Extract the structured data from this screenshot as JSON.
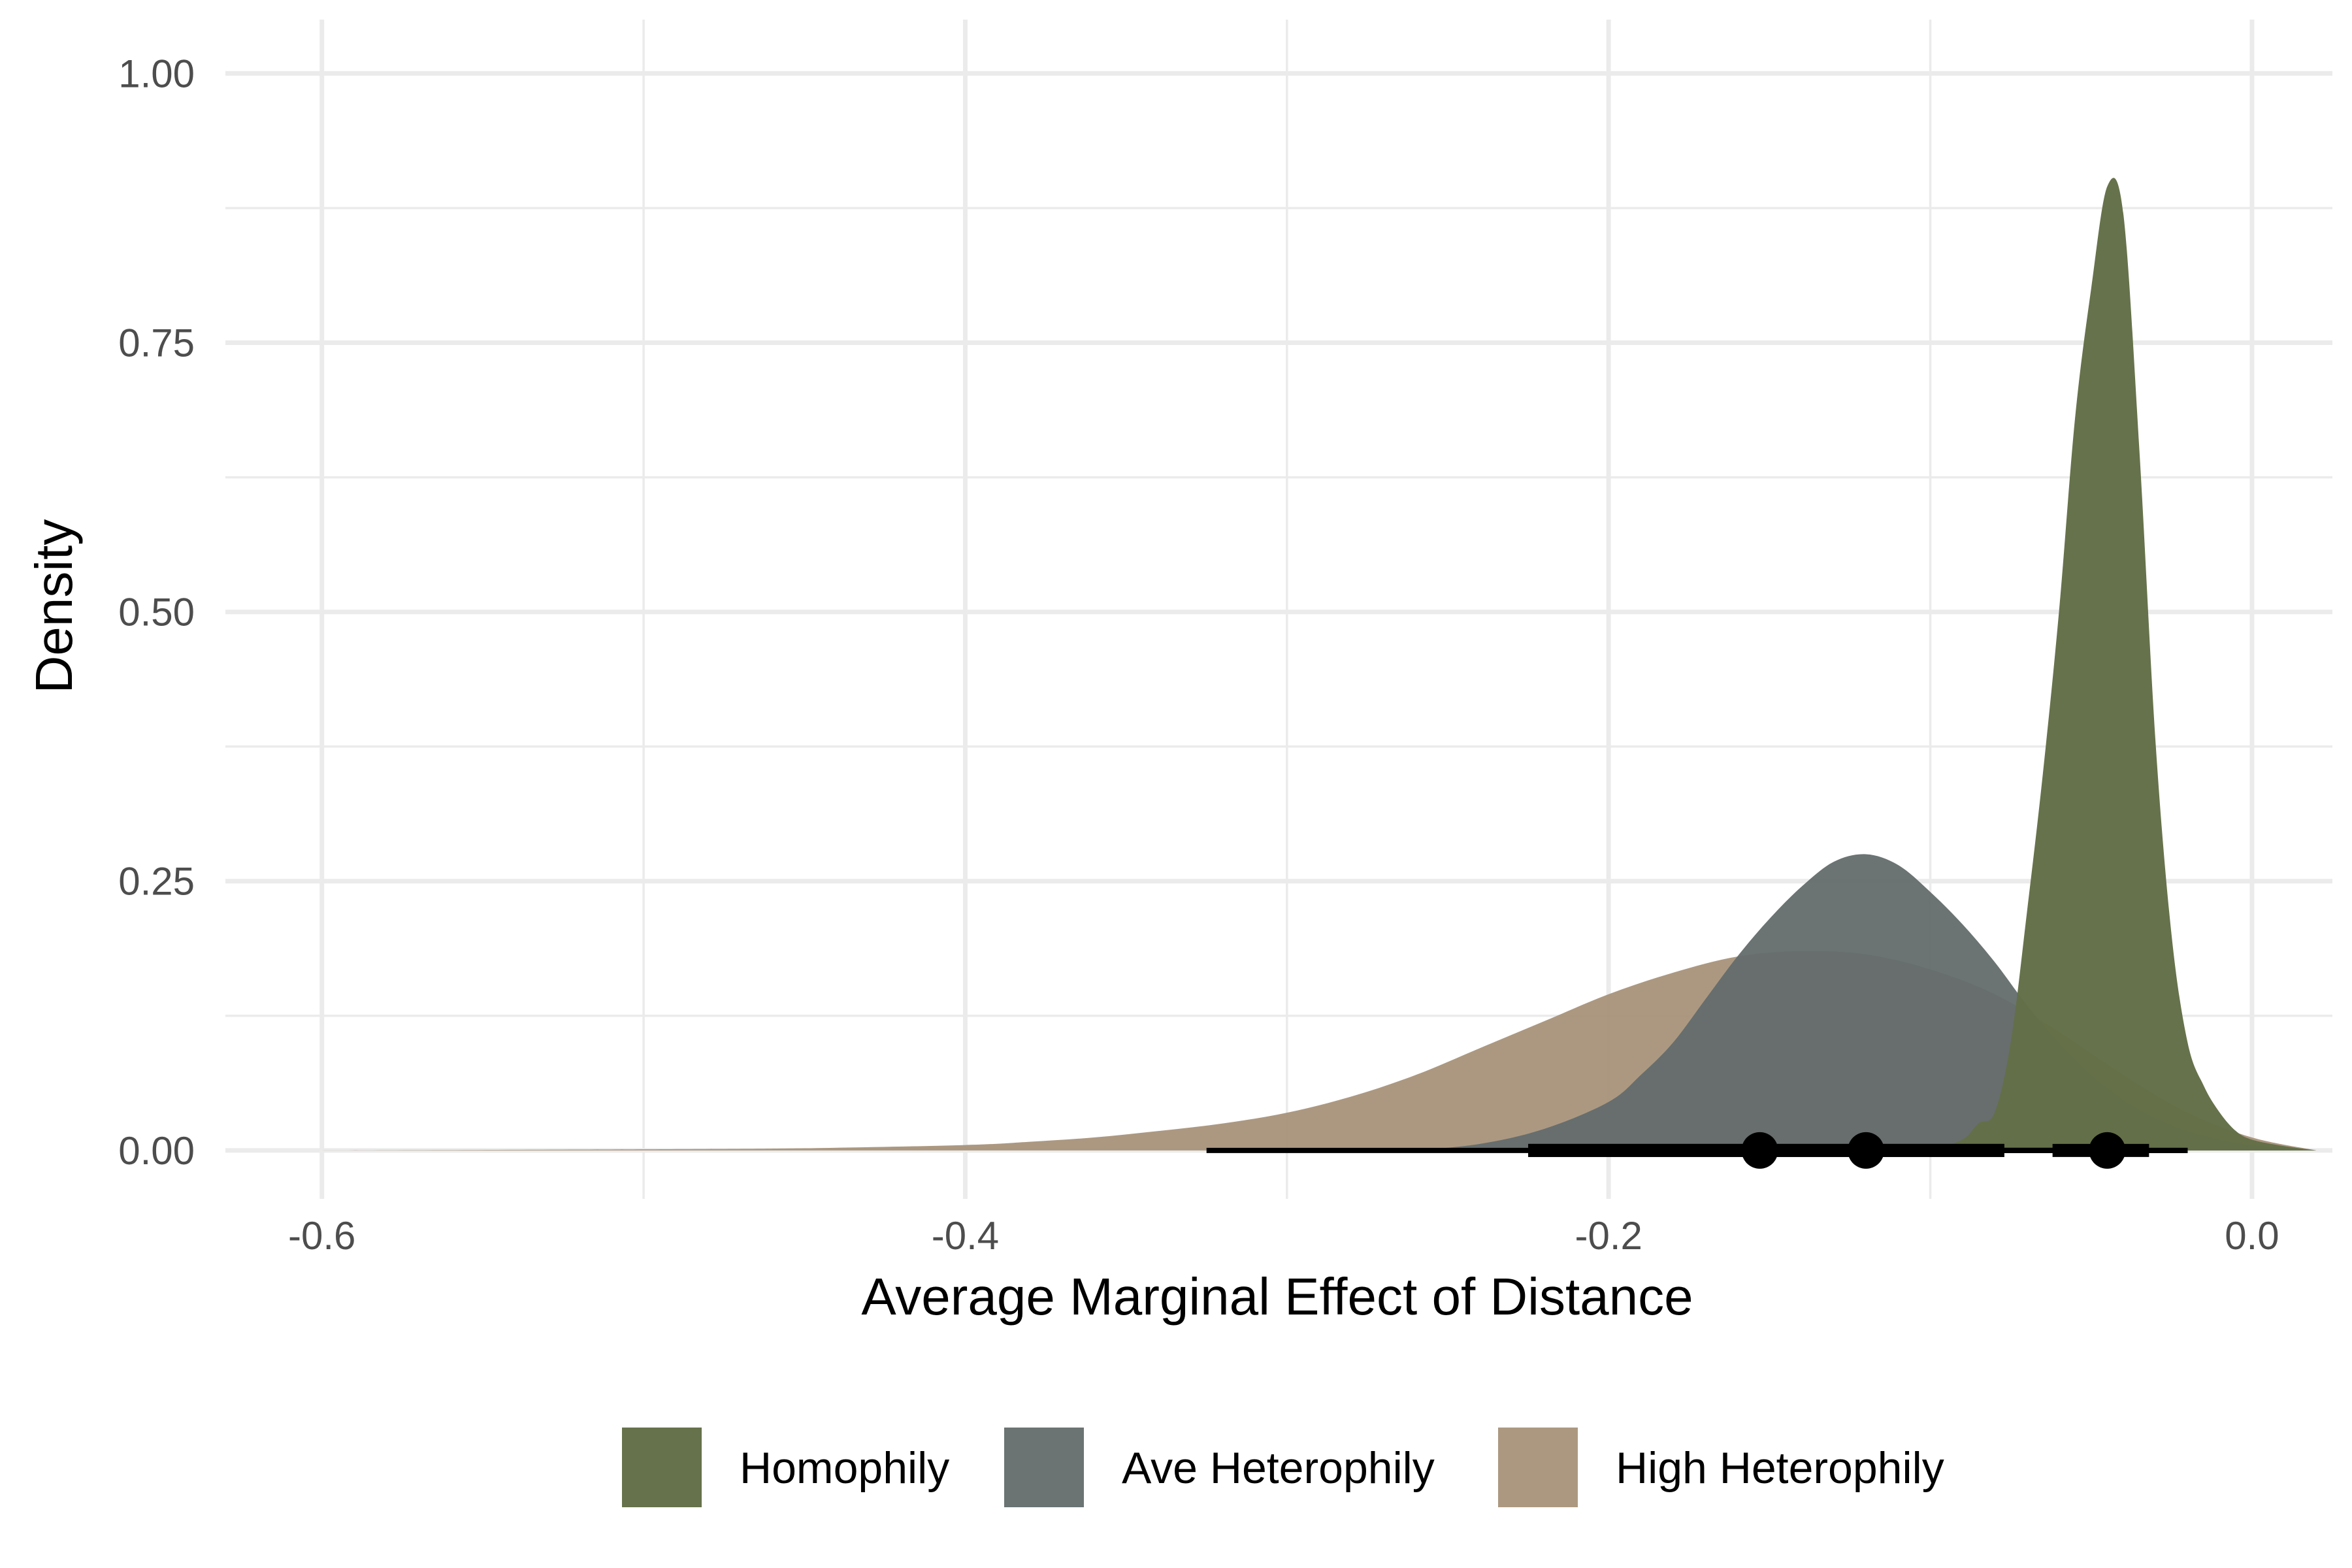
{
  "chart_data": {
    "type": "area",
    "subtype": "density with point-interval summaries",
    "title": "",
    "xlabel": "Average Marginal Effect of Distance",
    "ylabel": "Density",
    "xlim": [
      -0.63,
      0.025
    ],
    "ylim": [
      -0.045,
      1.05
    ],
    "x_ticks": [
      -0.6,
      -0.4,
      -0.2,
      0.0
    ],
    "x_tick_labels": [
      "-0.6",
      "-0.4",
      "-0.2",
      "0.0"
    ],
    "y_ticks": [
      0.0,
      0.25,
      0.5,
      0.75,
      1.0
    ],
    "y_tick_labels": [
      "0.00",
      "0.25",
      "0.50",
      "0.75",
      "1.00"
    ],
    "x_minor_ticks": [
      -0.5,
      -0.3,
      -0.1
    ],
    "y_minor_ticks": [
      0.125,
      0.375,
      0.625,
      0.875
    ],
    "grid": true,
    "legend_position": "bottom",
    "series": [
      {
        "name": "Homophily",
        "color": "#636f47",
        "opacity": 0.98,
        "x": [
          -0.1,
          -0.09,
          -0.085,
          -0.08,
          -0.075,
          -0.07,
          -0.065,
          -0.06,
          -0.055,
          -0.05,
          -0.045,
          -0.04,
          -0.035,
          -0.03,
          -0.025,
          -0.02,
          -0.015,
          -0.01,
          -0.005,
          0.0,
          0.01,
          0.02
        ],
        "y": [
          0.0,
          0.01,
          0.025,
          0.035,
          0.1,
          0.22,
          0.35,
          0.5,
          0.68,
          0.8,
          0.895,
          0.87,
          0.65,
          0.38,
          0.2,
          0.1,
          0.06,
          0.035,
          0.018,
          0.01,
          0.004,
          0.0
        ]
      },
      {
        "name": "Ave Heterophily",
        "color": "#636b6b",
        "opacity": 0.95,
        "x": [
          -0.26,
          -0.24,
          -0.22,
          -0.2,
          -0.19,
          -0.18,
          -0.17,
          -0.16,
          -0.15,
          -0.14,
          -0.13,
          -0.12,
          -0.11,
          -0.1,
          -0.09,
          -0.08,
          -0.07,
          -0.06,
          -0.05,
          -0.04,
          -0.03,
          -0.02,
          -0.01,
          0.0,
          0.02
        ],
        "y": [
          0.0,
          0.006,
          0.02,
          0.045,
          0.07,
          0.1,
          0.14,
          0.18,
          0.215,
          0.245,
          0.268,
          0.275,
          0.265,
          0.24,
          0.21,
          0.175,
          0.135,
          0.1,
          0.07,
          0.047,
          0.03,
          0.018,
          0.01,
          0.005,
          0.0
        ]
      },
      {
        "name": "High Heterophily",
        "color": "#a58f76",
        "opacity": 0.92,
        "x": [
          -0.6,
          -0.5,
          -0.45,
          -0.4,
          -0.38,
          -0.36,
          -0.34,
          -0.32,
          -0.3,
          -0.28,
          -0.26,
          -0.24,
          -0.22,
          -0.2,
          -0.18,
          -0.16,
          -0.14,
          -0.12,
          -0.1,
          -0.08,
          -0.06,
          -0.04,
          -0.02,
          0.0,
          0.02
        ],
        "y": [
          0.0,
          0.001,
          0.002,
          0.005,
          0.008,
          0.012,
          0.018,
          0.025,
          0.035,
          0.05,
          0.07,
          0.095,
          0.12,
          0.145,
          0.165,
          0.18,
          0.185,
          0.182,
          0.168,
          0.145,
          0.11,
          0.07,
          0.035,
          0.012,
          0.0
        ]
      }
    ],
    "point_intervals": [
      {
        "name": "High Heterophily",
        "point": -0.153,
        "inner": [
          -0.225,
          -0.077
        ],
        "outer": [
          -0.325,
          -0.02
        ]
      },
      {
        "name": "Ave Heterophily",
        "point": -0.12,
        "inner": [
          -0.225,
          -0.077
        ],
        "outer": [
          -0.2,
          -0.06
        ]
      },
      {
        "name": "Homophily",
        "point": -0.045,
        "inner": [
          -0.062,
          -0.032
        ],
        "outer": [
          -0.08,
          -0.02
        ]
      }
    ],
    "legend": [
      "Homophily",
      "Ave Heterophily",
      "High Heterophily"
    ]
  }
}
